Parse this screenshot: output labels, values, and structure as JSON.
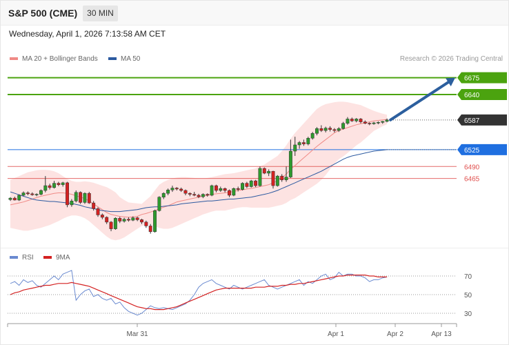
{
  "header": {
    "title": "S&P 500 (CME)",
    "timeframe": "30 MIN"
  },
  "datetime": "Wednesday, April 1, 2026 7:13:58 AM CET",
  "legend": {
    "ma20_label": "MA 20 + Bollinger Bands",
    "ma50_label": "MA 50"
  },
  "copyright": "Research © 2026 Trading Central",
  "rsi_legend": {
    "rsi_label": "RSI",
    "ma_label": "9MA"
  },
  "colors": {
    "resistance": "#4ba30f",
    "last": "#333333",
    "pivot": "#1f6fe0",
    "support": "#e0504e",
    "arrow": "#2c5f9e",
    "ma20": "#f08a86",
    "ma50": "#2c5aa0",
    "bollinger": "#fde0df",
    "candle_up": "#2e9a2e",
    "candle_down": "#d42121",
    "rsi": "#6a8ad0",
    "rsi_ma": "#d42121"
  },
  "chart_data": [
    {
      "type": "candlestick",
      "title": "S&P 500 (CME)",
      "timeframe": "30 MIN",
      "ylim": [
        6335,
        6700
      ],
      "x_ticks": [
        "Mar 31",
        "Apr 1",
        "Apr 2",
        "Apr 13"
      ],
      "price_levels": [
        {
          "label": "6675",
          "value": 6675,
          "kind": "resistance"
        },
        {
          "label": "6640",
          "value": 6640,
          "kind": "resistance"
        },
        {
          "label": "6587",
          "value": 6587,
          "kind": "last"
        },
        {
          "label": "6525",
          "value": 6525,
          "kind": "pivot"
        },
        {
          "label": "6490",
          "value": 6490,
          "kind": "support"
        },
        {
          "label": "6465",
          "value": 6465,
          "kind": "support"
        }
      ],
      "target_arrow": {
        "from": 6587,
        "to": 6675
      },
      "candles": [
        [
          6421,
          6426,
          6418,
          6424
        ],
        [
          6424,
          6427,
          6419,
          6420
        ],
        [
          6420,
          6432,
          6418,
          6430
        ],
        [
          6430,
          6438,
          6428,
          6435
        ],
        [
          6435,
          6438,
          6430,
          6433
        ],
        [
          6433,
          6436,
          6429,
          6431
        ],
        [
          6431,
          6434,
          6428,
          6432
        ],
        [
          6432,
          6442,
          6430,
          6440
        ],
        [
          6440,
          6470,
          6436,
          6450
        ],
        [
          6450,
          6454,
          6442,
          6446
        ],
        [
          6446,
          6460,
          6444,
          6455
        ],
        [
          6455,
          6458,
          6449,
          6452
        ],
        [
          6452,
          6458,
          6448,
          6456
        ],
        [
          6456,
          6458,
          6405,
          6410
        ],
        [
          6410,
          6422,
          6406,
          6418
        ],
        [
          6418,
          6440,
          6415,
          6436
        ],
        [
          6436,
          6438,
          6412,
          6415
        ],
        [
          6415,
          6436,
          6412,
          6434
        ],
        [
          6434,
          6437,
          6412,
          6414
        ],
        [
          6414,
          6418,
          6398,
          6402
        ],
        [
          6402,
          6405,
          6385,
          6389
        ],
        [
          6389,
          6392,
          6380,
          6384
        ],
        [
          6384,
          6386,
          6370,
          6374
        ],
        [
          6374,
          6376,
          6355,
          6360
        ],
        [
          6360,
          6384,
          6358,
          6382
        ],
        [
          6382,
          6385,
          6372,
          6376
        ],
        [
          6376,
          6383,
          6373,
          6380
        ],
        [
          6380,
          6384,
          6375,
          6378
        ],
        [
          6378,
          6386,
          6376,
          6383
        ],
        [
          6383,
          6385,
          6376,
          6379
        ],
        [
          6379,
          6381,
          6370,
          6374
        ],
        [
          6374,
          6377,
          6362,
          6366
        ],
        [
          6366,
          6370,
          6350,
          6354
        ],
        [
          6354,
          6400,
          6352,
          6398
        ],
        [
          6398,
          6428,
          6396,
          6426
        ],
        [
          6426,
          6436,
          6422,
          6434
        ],
        [
          6434,
          6444,
          6430,
          6441
        ],
        [
          6441,
          6450,
          6437,
          6445
        ],
        [
          6445,
          6447,
          6440,
          6443
        ],
        [
          6443,
          6446,
          6437,
          6440
        ],
        [
          6440,
          6442,
          6430,
          6434
        ],
        [
          6434,
          6436,
          6428,
          6432
        ],
        [
          6432,
          6437,
          6428,
          6430
        ],
        [
          6430,
          6433,
          6424,
          6427
        ],
        [
          6427,
          6434,
          6424,
          6432
        ],
        [
          6432,
          6434,
          6427,
          6430
        ],
        [
          6430,
          6452,
          6428,
          6450
        ],
        [
          6450,
          6452,
          6436,
          6440
        ],
        [
          6440,
          6448,
          6437,
          6444
        ],
        [
          6444,
          6446,
          6436,
          6440
        ],
        [
          6440,
          6442,
          6426,
          6430
        ],
        [
          6430,
          6446,
          6428,
          6444
        ],
        [
          6444,
          6448,
          6438,
          6442
        ],
        [
          6442,
          6457,
          6440,
          6455
        ],
        [
          6455,
          6458,
          6445,
          6448
        ],
        [
          6448,
          6462,
          6446,
          6460
        ],
        [
          6460,
          6462,
          6447,
          6450
        ],
        [
          6450,
          6490,
          6448,
          6486
        ],
        [
          6486,
          6488,
          6474,
          6476
        ],
        [
          6476,
          6484,
          6470,
          6480
        ],
        [
          6480,
          6481,
          6444,
          6450
        ],
        [
          6450,
          6472,
          6448,
          6470
        ],
        [
          6470,
          6474,
          6458,
          6462
        ],
        [
          6462,
          6490,
          6458,
          6468
        ],
        [
          6468,
          6546,
          6466,
          6522
        ],
        [
          6522,
          6552,
          6512,
          6535
        ],
        [
          6535,
          6543,
          6527,
          6540
        ],
        [
          6540,
          6546,
          6533,
          6537
        ],
        [
          6537,
          6552,
          6534,
          6549
        ],
        [
          6549,
          6562,
          6546,
          6559
        ],
        [
          6559,
          6572,
          6555,
          6569
        ],
        [
          6569,
          6576,
          6562,
          6565
        ],
        [
          6565,
          6573,
          6561,
          6570
        ],
        [
          6570,
          6574,
          6563,
          6567
        ],
        [
          6567,
          6570,
          6561,
          6565
        ],
        [
          6565,
          6572,
          6562,
          6569
        ],
        [
          6569,
          6583,
          6567,
          6580
        ],
        [
          6580,
          6593,
          6577,
          6589
        ],
        [
          6589,
          6592,
          6583,
          6585
        ],
        [
          6585,
          6591,
          6582,
          6589
        ],
        [
          6589,
          6591,
          6580,
          6583
        ],
        [
          6583,
          6586,
          6578,
          6580
        ],
        [
          6580,
          6582,
          6576,
          6579
        ],
        [
          6579,
          6583,
          6577,
          6581
        ],
        [
          6581,
          6584,
          6578,
          6582
        ],
        [
          6582,
          6585,
          6579,
          6584
        ],
        [
          6584,
          6590,
          6582,
          6587
        ]
      ],
      "ma20": [
        6410,
        6412,
        6414,
        6416,
        6419,
        6422,
        6425,
        6428,
        6430,
        6432,
        6434,
        6435,
        6435,
        6434,
        6432,
        6429,
        6426,
        6423,
        6418,
        6412,
        6406,
        6400,
        6394,
        6390,
        6388,
        6386,
        6385,
        6384,
        6385,
        6386,
        6390,
        6392,
        6395,
        6398,
        6402,
        6405,
        6408,
        6412,
        6416,
        6418,
        6420,
        6422,
        6424,
        6426,
        6428,
        6430,
        6432,
        6433,
        6434,
        6435,
        6436,
        6438,
        6440,
        6441,
        6443,
        6444,
        6446,
        6448,
        6450,
        6452,
        6456,
        6460,
        6466,
        6474,
        6484,
        6492,
        6500,
        6508,
        6516,
        6524,
        6532,
        6539,
        6546,
        6553,
        6560,
        6565,
        6568,
        6571,
        6574,
        6577,
        6579,
        6581,
        6583,
        6585,
        6586,
        6587,
        6588
      ],
      "bb_upper": [
        6462,
        6466,
        6470,
        6474,
        6478,
        6480,
        6482,
        6483,
        6483,
        6482,
        6480,
        6476,
        6470,
        6464,
        6460,
        6458,
        6458,
        6459,
        6458,
        6456,
        6453,
        6450,
        6447,
        6442,
        6436,
        6426,
        6420,
        6415,
        6414,
        6413,
        6412,
        6420,
        6428,
        6440,
        6452,
        6458,
        6462,
        6465,
        6467,
        6468,
        6468,
        6467,
        6466,
        6465,
        6465,
        6466,
        6468,
        6470,
        6472,
        6474,
        6475,
        6476,
        6478,
        6480,
        6482,
        6484,
        6486,
        6490,
        6494,
        6500,
        6506,
        6512,
        6522,
        6534,
        6548,
        6560,
        6570,
        6580,
        6590,
        6600,
        6610,
        6616,
        6620,
        6622,
        6624,
        6625,
        6625,
        6624,
        6622,
        6620,
        6618,
        6614,
        6610,
        6606,
        6603,
        6600,
        6598
      ],
      "bb_lower": [
        6362,
        6360,
        6358,
        6356,
        6356,
        6358,
        6360,
        6362,
        6365,
        6368,
        6372,
        6376,
        6381,
        6385,
        6388,
        6388,
        6386,
        6382,
        6376,
        6368,
        6360,
        6352,
        6344,
        6338,
        6336,
        6338,
        6342,
        6348,
        6354,
        6360,
        6366,
        6368,
        6368,
        6365,
        6362,
        6360,
        6360,
        6362,
        6366,
        6370,
        6374,
        6378,
        6382,
        6386,
        6390,
        6393,
        6396,
        6398,
        6398,
        6398,
        6400,
        6402,
        6404,
        6405,
        6405,
        6404,
        6404,
        6404,
        6404,
        6404,
        6406,
        6408,
        6410,
        6414,
        6420,
        6424,
        6430,
        6436,
        6442,
        6448,
        6454,
        6462,
        6472,
        6484,
        6496,
        6505,
        6511,
        6518,
        6526,
        6534,
        6540,
        6548,
        6556,
        6564,
        6569,
        6574,
        6578
      ],
      "ma50": [
        6437,
        6434,
        6431,
        6428,
        6425,
        6422,
        6420,
        6419,
        6418,
        6417,
        6417,
        6416,
        6415,
        6414,
        6413,
        6411,
        6409,
        6406,
        6404,
        6402,
        6400,
        6398,
        6397,
        6396,
        6396,
        6396,
        6397,
        6398,
        6399,
        6400,
        6402,
        6404,
        6405,
        6406,
        6406,
        6407,
        6408,
        6409,
        6410,
        6412,
        6413,
        6414,
        6415,
        6416,
        6417,
        6418,
        6418,
        6419,
        6420,
        6421,
        6422,
        6422,
        6423,
        6424,
        6425,
        6426,
        6428,
        6430,
        6432,
        6434,
        6437,
        6440,
        6444,
        6448,
        6452,
        6456,
        6460,
        6464,
        6468,
        6472,
        6476,
        6480,
        6485,
        6490,
        6495,
        6500,
        6505,
        6509,
        6512,
        6514,
        6516,
        6518,
        6520,
        6522,
        6523,
        6524,
        6525
      ]
    },
    {
      "type": "line",
      "title": "RSI",
      "ylim": [
        20,
        80
      ],
      "y_ticks": [
        70,
        50,
        30
      ],
      "series": [
        {
          "name": "RSI",
          "values": [
            62,
            64,
            60,
            66,
            63,
            65,
            60,
            58,
            62,
            66,
            70,
            66,
            72,
            74,
            76,
            44,
            50,
            54,
            56,
            48,
            50,
            46,
            44,
            46,
            40,
            42,
            36,
            32,
            30,
            28,
            30,
            34,
            38,
            36,
            35,
            36,
            35,
            34,
            36,
            38,
            40,
            44,
            50,
            58,
            62,
            64,
            66,
            62,
            60,
            58,
            56,
            60,
            58,
            56,
            58,
            60,
            62,
            64,
            66,
            60,
            58,
            56,
            58,
            60,
            62,
            64,
            66,
            60,
            64,
            62,
            66,
            70,
            72,
            66,
            68,
            74,
            70,
            72,
            72,
            70,
            70,
            68,
            64,
            66,
            66,
            68,
            69
          ]
        },
        {
          "name": "9MA",
          "values": [
            50,
            52,
            53,
            55,
            56,
            57,
            58,
            59,
            60,
            60,
            61,
            62,
            62,
            62,
            63,
            62,
            61,
            60,
            59,
            57,
            55,
            53,
            51,
            49,
            47,
            45,
            43,
            41,
            39,
            37,
            36,
            35,
            35,
            34,
            34,
            34,
            35,
            36,
            37,
            39,
            41,
            43,
            45,
            47,
            49,
            51,
            53,
            55,
            56,
            57,
            57,
            57,
            57,
            57,
            57,
            57,
            58,
            58,
            58,
            59,
            59,
            59,
            60,
            60,
            61,
            61,
            62,
            62,
            63,
            64,
            65,
            66,
            67,
            68,
            69,
            70,
            70,
            71,
            71,
            71,
            71,
            71,
            70,
            70,
            69,
            69,
            69
          ]
        }
      ]
    }
  ]
}
